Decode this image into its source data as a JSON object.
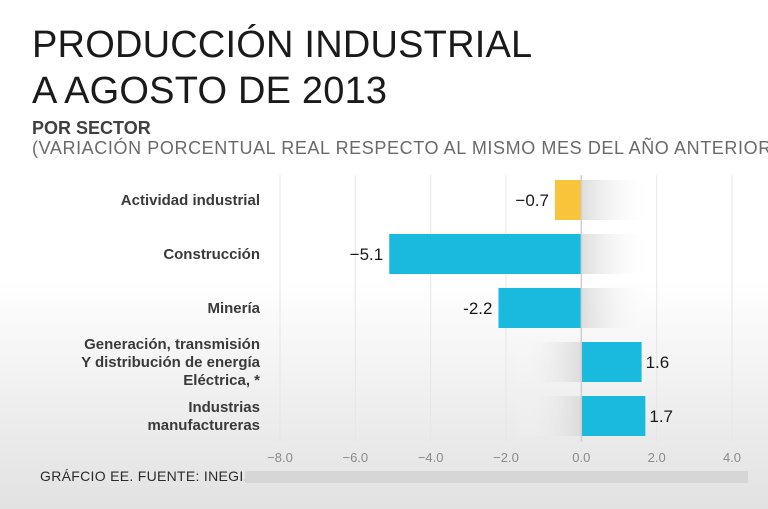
{
  "header": {
    "title_line1": "PRODUCCIÓN INDUSTRIAL",
    "title_line2": "A AGOSTO DE 2013",
    "subtitle": "POR SECTOR",
    "note": "(VARIACIÓN PORCENTUAL REAL RESPECTO AL MISMO MES DEL AÑO ANTERIOR)"
  },
  "footer": {
    "source": "GRÁFCIO EE. FUENTE: INEGI."
  },
  "chart_data": {
    "type": "bar",
    "orientation": "horizontal",
    "title": "PRODUCCIÓN INDUSTRIAL A AGOSTO DE 2013",
    "subtitle": "POR SECTOR",
    "categories": [
      [
        "Actividad industrial"
      ],
      [
        "Construcción"
      ],
      [
        "Minería"
      ],
      [
        "Generación, transmisión",
        "Y distribución de energía",
        "Eléctrica, *"
      ],
      [
        "Industrias",
        "manufactureras"
      ]
    ],
    "values": [
      -0.7,
      -5.1,
      -2.2,
      1.6,
      1.7
    ],
    "value_labels": [
      "−0.7",
      "−5.1",
      "-2.2",
      "1.6",
      "1.7"
    ],
    "colors": [
      "#f9c33c",
      "#1ab9de",
      "#1ab9de",
      "#1ab9de",
      "#1ab9de"
    ],
    "xlim": [
      -8.0,
      4.0
    ],
    "ticks": [
      -8.0,
      -6.0,
      -4.0,
      -2.0,
      0.0,
      2.0,
      4.0
    ],
    "tick_labels": [
      "−8.0",
      "−6.0",
      "−4.0",
      "−2.0",
      "0.0",
      "2.0",
      "4.0"
    ],
    "grid": true
  }
}
